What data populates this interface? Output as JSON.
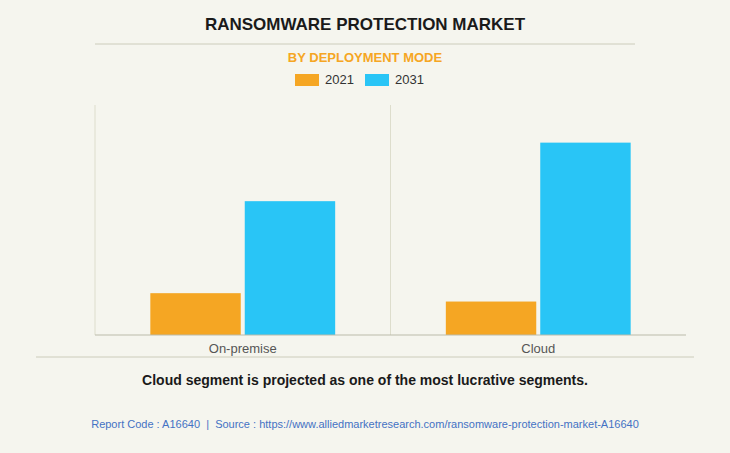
{
  "chart_data": {
    "type": "bar",
    "title": "RANSOMWARE PROTECTION MARKET",
    "subtitle": "BY DEPLOYMENT MODE",
    "categories": [
      "On-premise",
      "Cloud"
    ],
    "series": [
      {
        "name": "2021",
        "color": "#F5A623",
        "values": [
          1.0,
          0.8
        ]
      },
      {
        "name": "2031",
        "color": "#29C5F6",
        "values": [
          3.2,
          4.6
        ]
      }
    ],
    "ylim": [
      0,
      5.5
    ],
    "tick_labels": "x",
    "grid": false,
    "legend": "top",
    "annotations": [
      "Cloud segment is projected as one of the most lucrative segments.",
      "Report Code : A16640  |  Source : https://www.alliedmarketresearch.com/ransomware-protection-market-A16640"
    ]
  }
}
